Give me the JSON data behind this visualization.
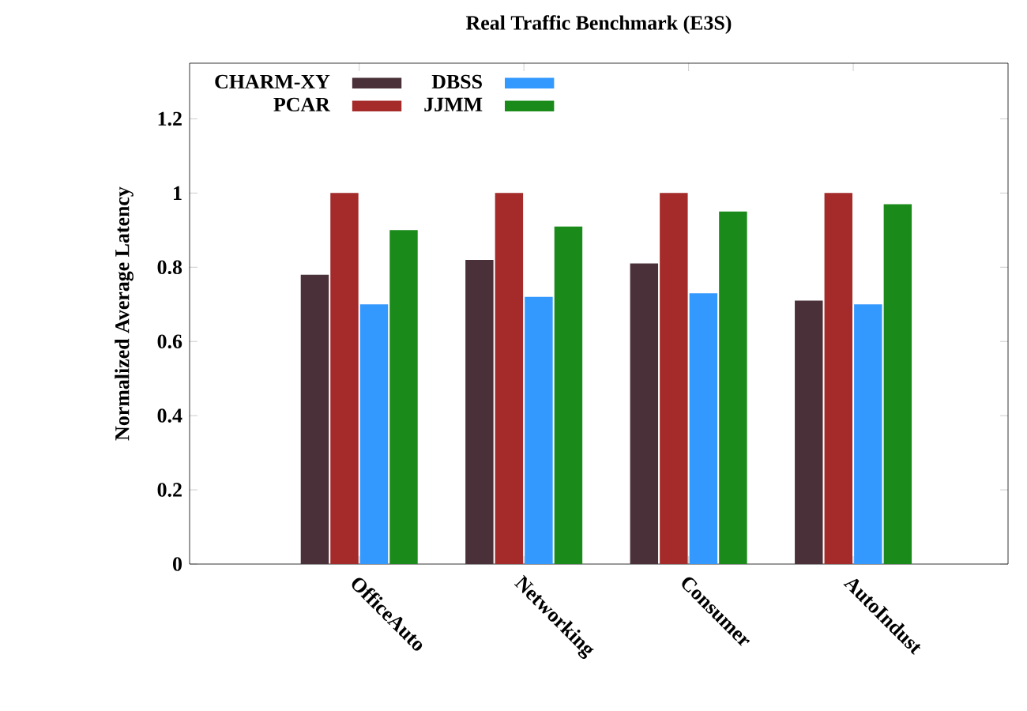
{
  "chart_data": {
    "type": "bar",
    "title": "Real Traffic Benchmark (E3S)",
    "ylabel": "Normalized Average Latency",
    "categories": [
      "OfficeAuto",
      "Networking",
      "Consumer",
      "AutoIndust"
    ],
    "series": [
      {
        "name": "CHARM-XY",
        "color": "#4a3038",
        "values": [
          0.78,
          0.82,
          0.81,
          0.71
        ]
      },
      {
        "name": "PCAR",
        "color": "#a52a2a",
        "values": [
          1,
          1,
          1,
          1
        ]
      },
      {
        "name": "DBSS",
        "color": "#3399ff",
        "values": [
          0.7,
          0.72,
          0.73,
          0.7
        ]
      },
      {
        "name": "JJMM",
        "color": "#1a8a1a",
        "values": [
          0.9,
          0.91,
          0.95,
          0.97
        ]
      }
    ],
    "ylim": [
      0,
      1.35
    ],
    "yticks": [
      0,
      0.2,
      0.4,
      0.6,
      0.8,
      1,
      1.2
    ],
    "grid": false,
    "legend": "top left"
  }
}
